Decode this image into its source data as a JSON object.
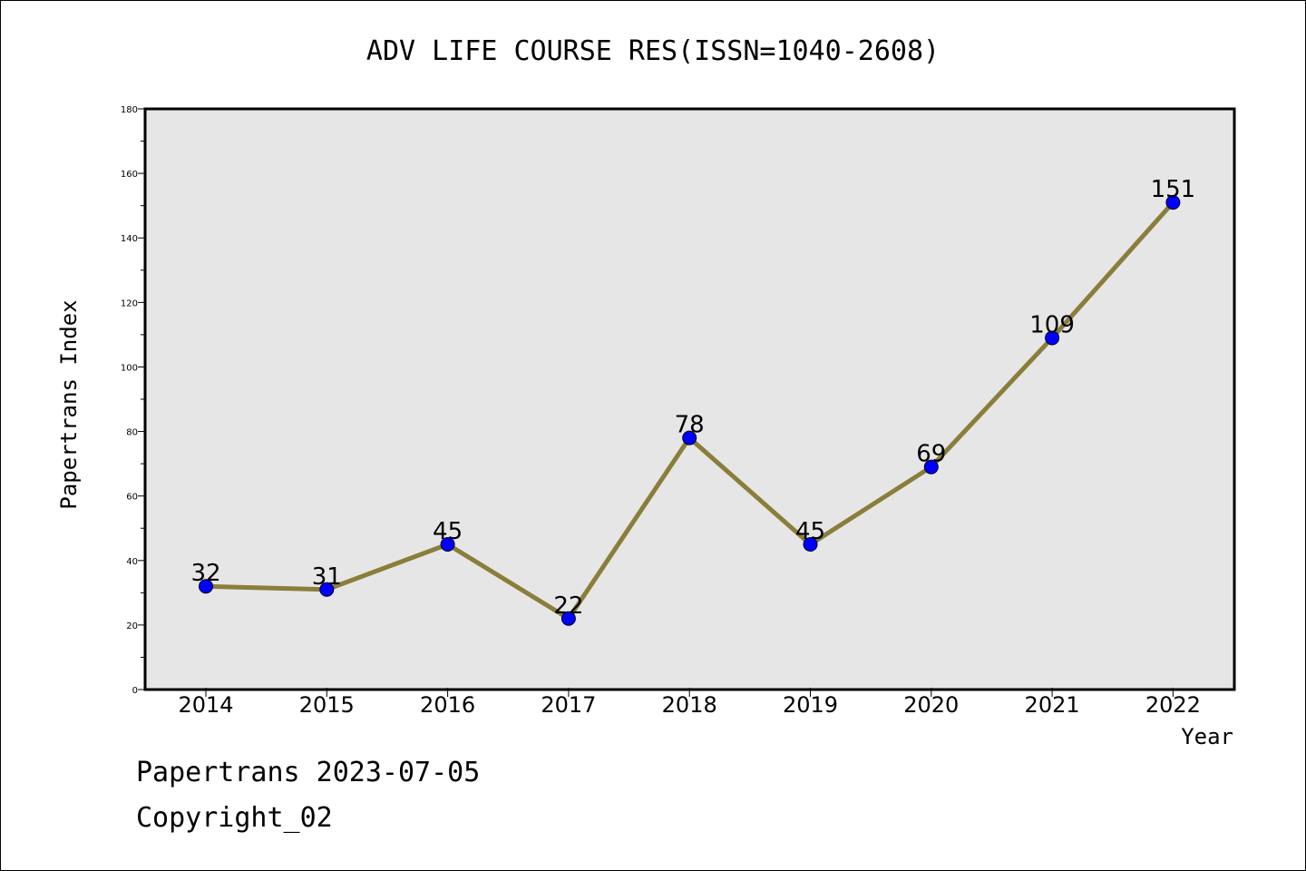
{
  "chart_data": {
    "type": "line",
    "title": "ADV LIFE COURSE RES(ISSN=1040-2608)",
    "xlabel": "Year",
    "ylabel": "Papertrans Index",
    "categories": [
      "2014",
      "2015",
      "2016",
      "2017",
      "2018",
      "2019",
      "2020",
      "2021",
      "2022"
    ],
    "values": [
      32,
      31,
      45,
      22,
      78,
      45,
      69,
      109,
      151
    ],
    "data_labels": [
      "32",
      "31",
      "45",
      "22",
      "78",
      "45",
      "69",
      "109",
      "151"
    ],
    "ylim": [
      0,
      180
    ],
    "yticks": [
      "0",
      "20",
      "40",
      "60",
      "80",
      "100",
      "120",
      "140",
      "160",
      "180"
    ],
    "grid": false,
    "legend": "none",
    "colors": {
      "line": "#8b7d3a",
      "marker": "#0000ff",
      "plot_background": "#e6e6e6"
    }
  },
  "footer": {
    "line1": "Papertrans 2023-07-05",
    "line2": "Copyright_02"
  }
}
